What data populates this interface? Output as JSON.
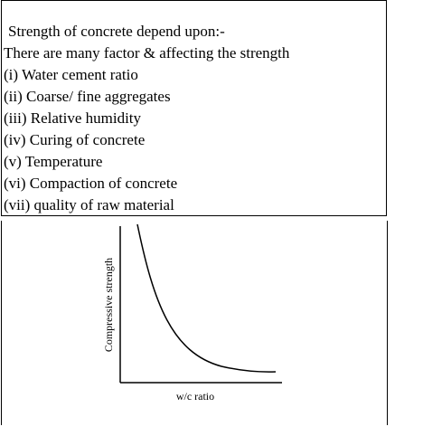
{
  "heading": "Strength of concrete depend upon:-",
  "intro": "There are many factor & affecting the strength",
  "factors": [
    "(i) Water cement ratio",
    "(ii) Coarse/ fine aggregates",
    "(iii) Relative humidity",
    "(iv) Curing of concrete",
    "(v) Temperature",
    "(vi) Compaction of concrete",
    "(vii) quality of raw material"
  ],
  "figure": {
    "y_label": "Compressive strength",
    "x_label": "w/c ratio"
  }
}
